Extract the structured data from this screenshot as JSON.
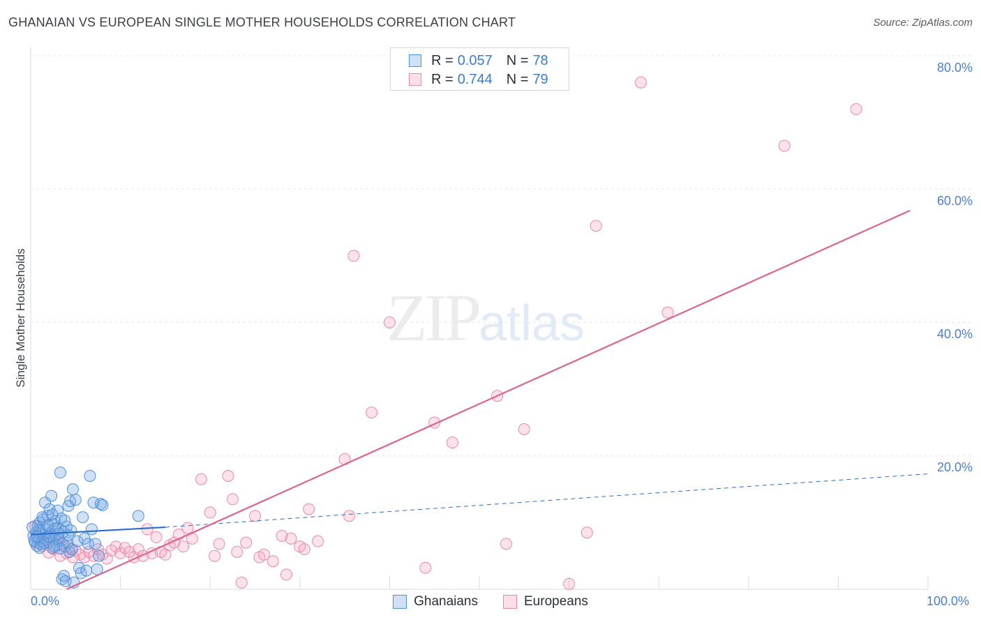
{
  "title": "GHANAIAN VS EUROPEAN SINGLE MOTHER HOUSEHOLDS CORRELATION CHART",
  "source": "Source: ZipAtlas.com",
  "watermark": {
    "zip": "ZIP",
    "atlas": "atlas"
  },
  "legend": {
    "r_label": "R =",
    "n_label": "N =",
    "rows": [
      {
        "series": "Ghanaians",
        "r": "0.057",
        "n": "78"
      },
      {
        "series": "Europeans",
        "r": "0.744",
        "n": "79"
      }
    ]
  },
  "colors": {
    "ghanaian_fill": "rgba(120,170,230,0.35)",
    "ghanaian_stroke": "#4f8fd8",
    "ghanaian_line": "#2a6fc9",
    "european_fill": "rgba(245,160,190,0.30)",
    "european_stroke": "#e889aa",
    "european_line": "#e0628e",
    "tick": "#4a7fd0",
    "grid": "#e3e6ea"
  },
  "chart_data": {
    "type": "scatter",
    "title": "GHANAIAN VS EUROPEAN SINGLE MOTHER HOUSEHOLDS CORRELATION CHART",
    "xlabel": "",
    "ylabel": "Single Mother Households",
    "xlim": [
      0,
      100
    ],
    "ylim": [
      0,
      80
    ],
    "x_ticks": [
      "0.0%",
      "100.0%"
    ],
    "y_ticks": [
      {
        "value": 80,
        "label": "80.0%"
      },
      {
        "value": 60,
        "label": "60.0%"
      },
      {
        "value": 40,
        "label": "40.0%"
      },
      {
        "value": 20,
        "label": "20.0%"
      }
    ],
    "series": [
      {
        "name": "Ghanaians",
        "points": [
          [
            0.3,
            8.0
          ],
          [
            0.5,
            7.0
          ],
          [
            0.6,
            8.5
          ],
          [
            0.7,
            6.5
          ],
          [
            0.8,
            9.5
          ],
          [
            0.9,
            7.5
          ],
          [
            1.0,
            10.0
          ],
          [
            1.1,
            6.8
          ],
          [
            1.2,
            8.8
          ],
          [
            1.3,
            7.2
          ],
          [
            1.4,
            10.5
          ],
          [
            1.5,
            8.2
          ],
          [
            1.6,
            13.0
          ],
          [
            1.7,
            9.0
          ],
          [
            1.8,
            7.8
          ],
          [
            1.9,
            11.0
          ],
          [
            2.0,
            7.0
          ],
          [
            2.1,
            12.0
          ],
          [
            2.2,
            8.4
          ],
          [
            2.3,
            14.0
          ],
          [
            2.4,
            6.2
          ],
          [
            2.5,
            9.8
          ],
          [
            2.6,
            7.6
          ],
          [
            2.7,
            10.2
          ],
          [
            2.8,
            8.0
          ],
          [
            2.9,
            6.6
          ],
          [
            3.0,
            11.8
          ],
          [
            3.1,
            9.2
          ],
          [
            3.2,
            7.4
          ],
          [
            3.3,
            17.5
          ],
          [
            3.4,
            10.6
          ],
          [
            3.5,
            1.5
          ],
          [
            3.6,
            8.6
          ],
          [
            3.7,
            2.0
          ],
          [
            3.8,
            6.4
          ],
          [
            3.9,
            1.2
          ],
          [
            4.0,
            9.4
          ],
          [
            4.1,
            7.0
          ],
          [
            4.2,
            12.5
          ],
          [
            4.3,
            5.6
          ],
          [
            4.4,
            13.2
          ],
          [
            4.5,
            8.8
          ],
          [
            4.6,
            6.0
          ],
          [
            4.7,
            15.0
          ],
          [
            4.8,
            1.0
          ],
          [
            5.0,
            13.4
          ],
          [
            5.2,
            7.2
          ],
          [
            5.4,
            3.2
          ],
          [
            5.6,
            2.4
          ],
          [
            5.8,
            10.8
          ],
          [
            6.0,
            7.6
          ],
          [
            6.2,
            2.8
          ],
          [
            6.4,
            6.8
          ],
          [
            6.6,
            17.0
          ],
          [
            6.8,
            9.0
          ],
          [
            7.0,
            13.0
          ],
          [
            7.2,
            6.8
          ],
          [
            7.4,
            3.0
          ],
          [
            7.6,
            5.0
          ],
          [
            7.8,
            12.8
          ],
          [
            8.0,
            12.6
          ],
          [
            12.0,
            11.0
          ],
          [
            0.4,
            7.3
          ],
          [
            0.9,
            8.9
          ],
          [
            1.5,
            6.9
          ],
          [
            2.1,
            7.9
          ],
          [
            2.7,
            9.1
          ],
          [
            3.3,
            6.1
          ],
          [
            3.8,
            10.3
          ],
          [
            4.2,
            8.1
          ],
          [
            0.2,
            9.3
          ],
          [
            1.0,
            6.2
          ],
          [
            1.9,
            9.6
          ],
          [
            2.6,
            6.4
          ],
          [
            3.1,
            8.3
          ],
          [
            1.3,
            10.8
          ],
          [
            0.7,
            7.9
          ],
          [
            2.4,
            11.2
          ]
        ]
      },
      {
        "name": "Europeans",
        "points": [
          [
            0.5,
            9.5
          ],
          [
            0.8,
            7.0
          ],
          [
            1.0,
            8.5
          ],
          [
            1.3,
            6.5
          ],
          [
            1.6,
            7.5
          ],
          [
            2.0,
            5.5
          ],
          [
            2.3,
            8.0
          ],
          [
            2.6,
            6.0
          ],
          [
            3.0,
            7.2
          ],
          [
            3.3,
            5.0
          ],
          [
            3.6,
            6.8
          ],
          [
            4.0,
            5.4
          ],
          [
            4.3,
            6.2
          ],
          [
            4.7,
            4.8
          ],
          [
            5.0,
            5.8
          ],
          [
            5.5,
            5.2
          ],
          [
            6.0,
            4.8
          ],
          [
            6.5,
            5.6
          ],
          [
            7.0,
            5.0
          ],
          [
            7.5,
            6.0
          ],
          [
            8.0,
            5.2
          ],
          [
            8.5,
            4.6
          ],
          [
            9.0,
            5.8
          ],
          [
            9.5,
            6.4
          ],
          [
            10.0,
            5.4
          ],
          [
            10.5,
            6.2
          ],
          [
            11.0,
            5.6
          ],
          [
            11.5,
            4.8
          ],
          [
            12.0,
            6.0
          ],
          [
            12.5,
            5.0
          ],
          [
            13.0,
            9.0
          ],
          [
            13.5,
            5.4
          ],
          [
            14.0,
            7.8
          ],
          [
            14.5,
            5.6
          ],
          [
            15.0,
            5.2
          ],
          [
            15.5,
            6.6
          ],
          [
            16.0,
            7.0
          ],
          [
            16.5,
            8.2
          ],
          [
            17.0,
            6.4
          ],
          [
            17.5,
            9.2
          ],
          [
            18.0,
            7.6
          ],
          [
            19.0,
            16.5
          ],
          [
            20.0,
            11.5
          ],
          [
            20.5,
            5.0
          ],
          [
            21.0,
            6.8
          ],
          [
            22.0,
            17.0
          ],
          [
            22.5,
            13.5
          ],
          [
            23.0,
            5.6
          ],
          [
            23.5,
            1.0
          ],
          [
            24.0,
            7.0
          ],
          [
            25.0,
            11.0
          ],
          [
            25.5,
            4.8
          ],
          [
            26.0,
            5.2
          ],
          [
            27.0,
            4.2
          ],
          [
            28.0,
            8.0
          ],
          [
            28.5,
            2.2
          ],
          [
            29.0,
            7.6
          ],
          [
            30.0,
            6.4
          ],
          [
            30.5,
            6.0
          ],
          [
            31.0,
            12.0
          ],
          [
            32.0,
            7.2
          ],
          [
            35.0,
            19.5
          ],
          [
            35.5,
            11.0
          ],
          [
            36.0,
            50.0
          ],
          [
            38.0,
            26.5
          ],
          [
            40.0,
            40.0
          ],
          [
            44.0,
            3.2
          ],
          [
            45.0,
            25.0
          ],
          [
            47.0,
            22.0
          ],
          [
            52.0,
            29.0
          ],
          [
            53.0,
            6.8
          ],
          [
            55.0,
            24.0
          ],
          [
            60.0,
            0.8
          ],
          [
            62.0,
            8.5
          ],
          [
            63.0,
            54.5
          ],
          [
            68.0,
            76.0
          ],
          [
            71.0,
            41.5
          ],
          [
            84.0,
            66.5
          ],
          [
            92.0,
            72.0
          ]
        ]
      }
    ],
    "trend_lines": [
      {
        "series": "Ghanaians",
        "solid": [
          [
            0,
            8.2
          ],
          [
            15,
            9.3
          ]
        ],
        "dashed": [
          [
            15,
            9.3
          ],
          [
            100,
            17.3
          ]
        ]
      },
      {
        "series": "Europeans",
        "solid": [
          [
            4,
            0
          ],
          [
            98,
            56.8
          ]
        ]
      }
    ]
  }
}
